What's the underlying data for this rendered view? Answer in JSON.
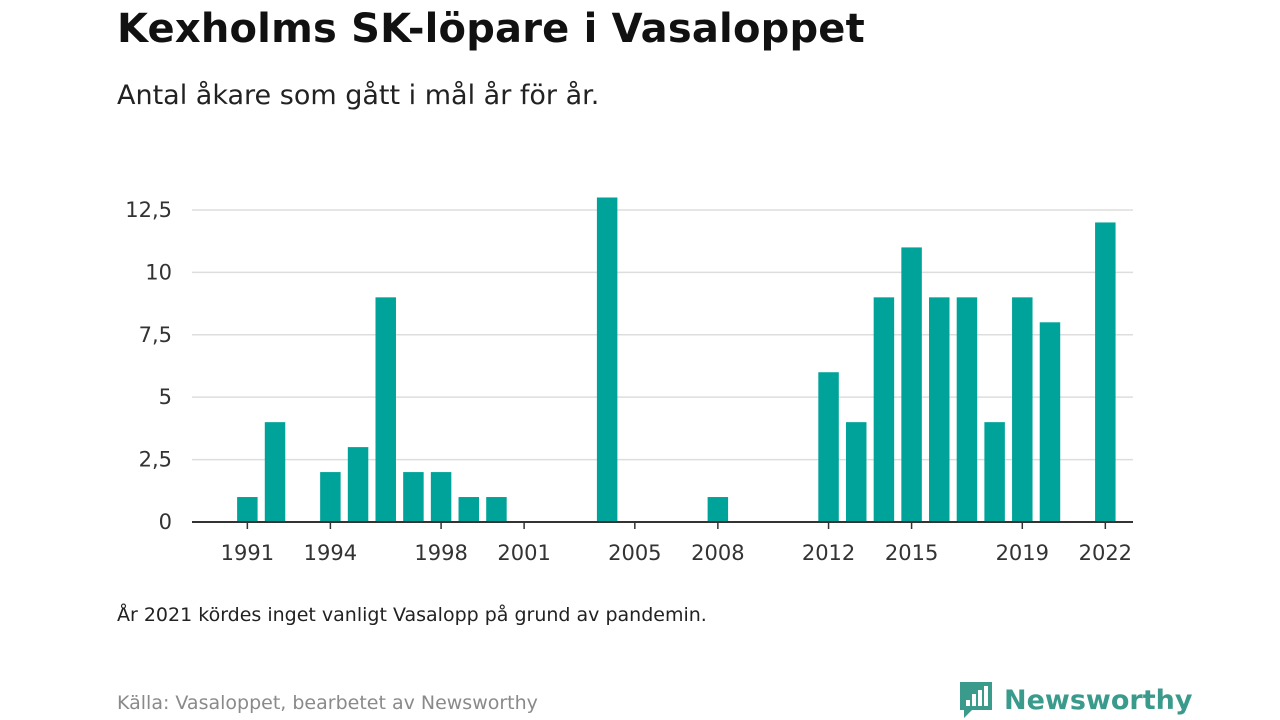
{
  "title": "Kexholms SK-löpare i Vasaloppet",
  "subtitle": "Antal åkare som gått i mål år för år.",
  "note": "År 2021 kördes inget vanligt Vasalopp på grund av pandemin.",
  "source": "Källa: Vasaloppet, bearbetet av Newsworthy",
  "brand": {
    "name": "Newsworthy",
    "icon": "newsworthy-logo-icon"
  },
  "colors": {
    "bar": "#00a39a",
    "grid": "#dddddd",
    "axis": "#333333",
    "brand": "#3a9a8c"
  },
  "chart_data": {
    "type": "bar",
    "title": "Kexholms SK-löpare i Vasaloppet",
    "subtitle": "Antal åkare som gått i mål år för år.",
    "xlabel": "",
    "ylabel": "",
    "ylim": [
      0,
      13.5
    ],
    "grid": true,
    "legend": "none",
    "x_range": [
      1989,
      2023
    ],
    "y_ticks": [
      {
        "value": 0,
        "label": "0"
      },
      {
        "value": 2.5,
        "label": "2,5"
      },
      {
        "value": 5,
        "label": "5"
      },
      {
        "value": 7.5,
        "label": "7,5"
      },
      {
        "value": 10,
        "label": "10"
      },
      {
        "value": 12.5,
        "label": "12,5"
      }
    ],
    "x_ticks": [
      1991,
      1994,
      1998,
      2001,
      2005,
      2008,
      2012,
      2015,
      2019,
      2022
    ],
    "x": [
      1991,
      1992,
      1994,
      1995,
      1996,
      1997,
      1998,
      1999,
      2000,
      2004,
      2008,
      2012,
      2013,
      2014,
      2015,
      2016,
      2017,
      2018,
      2019,
      2020,
      2022
    ],
    "values": [
      1,
      4,
      2,
      3,
      9,
      2,
      2,
      1,
      1,
      13,
      1,
      6,
      4,
      9,
      11,
      9,
      9,
      4,
      9,
      8,
      12
    ]
  }
}
